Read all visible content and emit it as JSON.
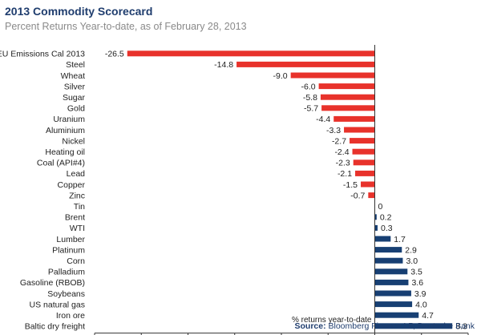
{
  "title": "2013 Commodity Scorecard",
  "subtitle": "Percent Returns Year-to-date, as of February 28, 2013",
  "source_label": "Source:",
  "source_text": "Bloomberg Finance LP, Deutsche Bank",
  "chart_data": {
    "type": "bar",
    "orientation": "horizontal",
    "categories": [
      "EU Emissions Cal 2013",
      "Steel",
      "Wheat",
      "Silver",
      "Sugar",
      "Gold",
      "Uranium",
      "Aluminium",
      "Nickel",
      "Heating oil",
      "Coal (API#4)",
      "Lead",
      "Copper",
      "Zinc",
      "Tin",
      "Brent",
      "WTI",
      "Lumber",
      "Platinum",
      "Corn",
      "Palladium",
      "Gasoline (RBOB)",
      "Soybeans",
      "US natural gas",
      "Iron ore",
      "Baltic dry freight"
    ],
    "values": [
      -26.5,
      -14.8,
      -9.0,
      -6.0,
      -5.8,
      -5.7,
      -4.4,
      -3.3,
      -2.7,
      -2.4,
      -2.3,
      -2.1,
      -1.5,
      -0.7,
      0,
      0.2,
      0.3,
      1.7,
      2.9,
      3.0,
      3.5,
      3.6,
      3.9,
      4.0,
      4.7,
      8.3
    ],
    "value_labels": [
      "-26.5",
      "-14.8",
      "-9.0",
      "-6.0",
      "-5.8",
      "-5.7",
      "-4.4",
      "-3.3",
      "-2.7",
      "-2.4",
      "-2.3",
      "-2.1",
      "-1.5",
      "-0.7",
      "0",
      "0.2",
      "0.3",
      "1.7",
      "2.9",
      "3.0",
      "3.5",
      "3.6",
      "3.9",
      "4.0",
      "4.7",
      "8.3"
    ],
    "xlim": [
      -30,
      10
    ],
    "xticks": [
      -30,
      -25,
      -20,
      -15,
      -10,
      -5,
      0,
      5,
      10
    ],
    "annotation": "% returns year-to-date",
    "colors": {
      "negative": "#e8322b",
      "positive": "#173f73",
      "axis": "#333333"
    }
  }
}
